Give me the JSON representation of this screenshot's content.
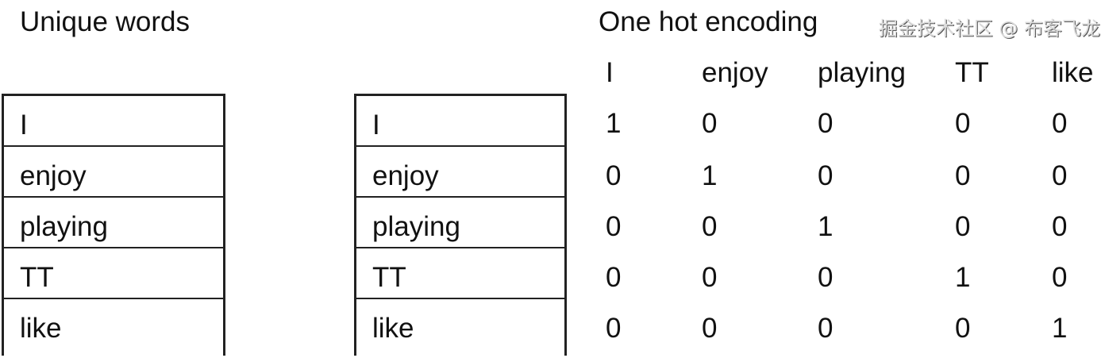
{
  "left_title": "Unique words",
  "right_title": "One hot encoding",
  "words": [
    "I",
    "enjoy",
    "playing",
    "TT",
    "like"
  ],
  "matrix": [
    [
      "1",
      "0",
      "0",
      "0",
      "0"
    ],
    [
      "0",
      "1",
      "0",
      "0",
      "0"
    ],
    [
      "0",
      "0",
      "1",
      "0",
      "0"
    ],
    [
      "0",
      "0",
      "0",
      "1",
      "0"
    ],
    [
      "0",
      "0",
      "0",
      "0",
      "1"
    ]
  ],
  "watermark": "掘金技术社区 @ 布客飞龙"
}
